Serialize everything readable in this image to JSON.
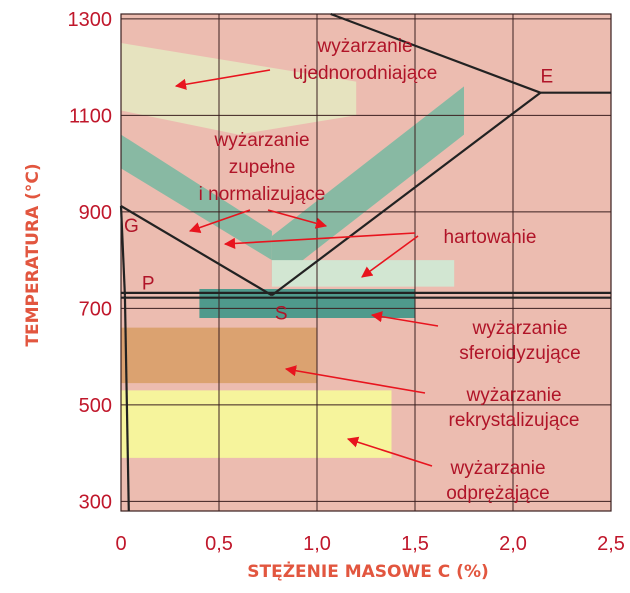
{
  "chart_data": {
    "type": "diagram",
    "xlabel": "STĘŻENIE MASOWE C (%)",
    "ylabel": "TEMPERATURA (°C)",
    "xlim": [
      0,
      2.5
    ],
    "ylim": [
      280,
      1310
    ],
    "x_ticks": [
      "0",
      "0,5",
      "1,0",
      "1,5",
      "2,0",
      "2,5"
    ],
    "y_ticks": [
      "300",
      "500",
      "700",
      "900",
      "1100",
      "1300"
    ],
    "points": [
      {
        "name": "E",
        "x": 2.14,
        "t": 1147
      },
      {
        "name": "G",
        "x": 0.0,
        "t": 912
      },
      {
        "name": "P",
        "x": 0.02,
        "t": 727
      },
      {
        "name": "S",
        "x": 0.77,
        "t": 727
      }
    ],
    "lines": [
      {
        "name": "liquidus-AC",
        "pts": [
          [
            1.07,
            1310
          ],
          [
            2.14,
            1147
          ]
        ]
      },
      {
        "name": "eutectic",
        "pts": [
          [
            2.14,
            1147
          ],
          [
            2.5,
            1147
          ]
        ]
      },
      {
        "name": "Acm-ES",
        "pts": [
          [
            0.77,
            727
          ],
          [
            2.14,
            1147
          ]
        ]
      },
      {
        "name": "A3-GS",
        "pts": [
          [
            0.0,
            912
          ],
          [
            0.77,
            727
          ]
        ]
      },
      {
        "name": "GP",
        "pts": [
          [
            0.0,
            912
          ],
          [
            0.02,
            727
          ]
        ]
      },
      {
        "name": "A1-upper",
        "pts": [
          [
            0.0,
            732
          ],
          [
            2.5,
            732
          ]
        ]
      },
      {
        "name": "A1-lower",
        "pts": [
          [
            0.0,
            722
          ],
          [
            2.5,
            722
          ]
        ]
      },
      {
        "name": "solvus-PQ",
        "pts": [
          [
            0.02,
            727
          ],
          [
            0.04,
            280
          ]
        ]
      }
    ],
    "regions": [
      {
        "name": "ujednorodniajace-band",
        "color": "#e6e3bf",
        "pts": [
          [
            0,
            1250
          ],
          [
            1.2,
            1170
          ],
          [
            1.2,
            1100
          ],
          [
            0.6,
            1060
          ],
          [
            0,
            1110
          ]
        ]
      },
      {
        "name": "zupelne-band",
        "color": "#88b9a3",
        "pts": [
          [
            0,
            1060
          ],
          [
            0.77,
            860
          ],
          [
            0.77,
            800
          ],
          [
            0,
            990
          ]
        ]
      },
      {
        "name": "hartowanie-band",
        "color": "#88b9a3",
        "pts": [
          [
            0.77,
            850
          ],
          [
            1.75,
            1160
          ],
          [
            1.75,
            1060
          ],
          [
            0.77,
            750
          ]
        ]
      },
      {
        "name": "hartowanie-box",
        "color": "#d2e6d2",
        "pts": [
          [
            0.77,
            800
          ],
          [
            1.7,
            800
          ],
          [
            1.7,
            745
          ],
          [
            0.77,
            745
          ]
        ]
      },
      {
        "name": "sferoidyzujace-box",
        "color": "#4f9a8c",
        "pts": [
          [
            0.4,
            740
          ],
          [
            1.5,
            740
          ],
          [
            1.5,
            680
          ],
          [
            0.4,
            680
          ]
        ]
      },
      {
        "name": "rekrystalizujace-box",
        "color": "#dba270",
        "pts": [
          [
            0,
            660
          ],
          [
            1.0,
            660
          ],
          [
            1.0,
            545
          ],
          [
            0,
            545
          ]
        ]
      },
      {
        "name": "odprezajace-box",
        "color": "#f6f49c",
        "pts": [
          [
            0,
            530
          ],
          [
            1.38,
            530
          ],
          [
            1.38,
            390
          ],
          [
            0,
            390
          ]
        ]
      }
    ],
    "colors": {
      "background": "#ecbcb0",
      "grid": "#3a1f1f",
      "text": "#b01428",
      "arrow": "#e8141e",
      "axis_title": "#e2563f"
    }
  },
  "annotations": [
    {
      "id": "ujednorodniajace",
      "lines": [
        "wyżarzanie",
        "ujednorodniające"
      ]
    },
    {
      "id": "zupelne",
      "lines": [
        "wyżarzanie",
        "zupełne",
        "i normalizujące"
      ]
    },
    {
      "id": "hartowanie",
      "lines": [
        "hartowanie"
      ]
    },
    {
      "id": "sferoidyzujace",
      "lines": [
        "wyżarzanie",
        "sferoidyzujące"
      ]
    },
    {
      "id": "rekrystalizujace",
      "lines": [
        "wyżarzanie",
        "rekrystalizujące"
      ]
    },
    {
      "id": "odprezajace",
      "lines": [
        "wyżarzanie",
        "odprężające"
      ]
    }
  ]
}
